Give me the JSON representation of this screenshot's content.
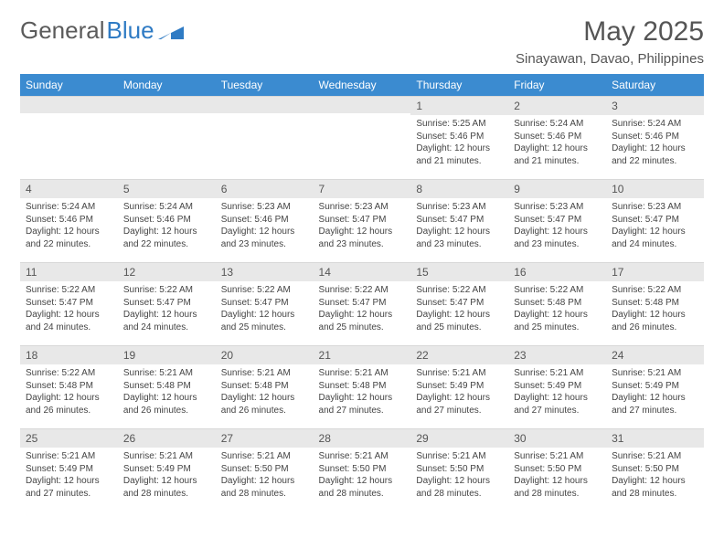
{
  "logo": {
    "text_a": "General",
    "text_b": "Blue",
    "triangle_color": "#2f7bc4"
  },
  "title": "May 2025",
  "subtitle": "Sinayawan, Davao, Philippines",
  "weekday_labels": [
    "Sunday",
    "Monday",
    "Tuesday",
    "Wednesday",
    "Thursday",
    "Friday",
    "Saturday"
  ],
  "colors": {
    "header_bg": "#3b8bd0",
    "header_text": "#ffffff",
    "daynum_bg": "#e8e8e8",
    "text": "#444444"
  },
  "weeks": [
    [
      {
        "n": "",
        "sr": "",
        "ss": "",
        "dl": ""
      },
      {
        "n": "",
        "sr": "",
        "ss": "",
        "dl": ""
      },
      {
        "n": "",
        "sr": "",
        "ss": "",
        "dl": ""
      },
      {
        "n": "",
        "sr": "",
        "ss": "",
        "dl": ""
      },
      {
        "n": "1",
        "sr": "Sunrise: 5:25 AM",
        "ss": "Sunset: 5:46 PM",
        "dl": "Daylight: 12 hours and 21 minutes."
      },
      {
        "n": "2",
        "sr": "Sunrise: 5:24 AM",
        "ss": "Sunset: 5:46 PM",
        "dl": "Daylight: 12 hours and 21 minutes."
      },
      {
        "n": "3",
        "sr": "Sunrise: 5:24 AM",
        "ss": "Sunset: 5:46 PM",
        "dl": "Daylight: 12 hours and 22 minutes."
      }
    ],
    [
      {
        "n": "4",
        "sr": "Sunrise: 5:24 AM",
        "ss": "Sunset: 5:46 PM",
        "dl": "Daylight: 12 hours and 22 minutes."
      },
      {
        "n": "5",
        "sr": "Sunrise: 5:24 AM",
        "ss": "Sunset: 5:46 PM",
        "dl": "Daylight: 12 hours and 22 minutes."
      },
      {
        "n": "6",
        "sr": "Sunrise: 5:23 AM",
        "ss": "Sunset: 5:46 PM",
        "dl": "Daylight: 12 hours and 23 minutes."
      },
      {
        "n": "7",
        "sr": "Sunrise: 5:23 AM",
        "ss": "Sunset: 5:47 PM",
        "dl": "Daylight: 12 hours and 23 minutes."
      },
      {
        "n": "8",
        "sr": "Sunrise: 5:23 AM",
        "ss": "Sunset: 5:47 PM",
        "dl": "Daylight: 12 hours and 23 minutes."
      },
      {
        "n": "9",
        "sr": "Sunrise: 5:23 AM",
        "ss": "Sunset: 5:47 PM",
        "dl": "Daylight: 12 hours and 23 minutes."
      },
      {
        "n": "10",
        "sr": "Sunrise: 5:23 AM",
        "ss": "Sunset: 5:47 PM",
        "dl": "Daylight: 12 hours and 24 minutes."
      }
    ],
    [
      {
        "n": "11",
        "sr": "Sunrise: 5:22 AM",
        "ss": "Sunset: 5:47 PM",
        "dl": "Daylight: 12 hours and 24 minutes."
      },
      {
        "n": "12",
        "sr": "Sunrise: 5:22 AM",
        "ss": "Sunset: 5:47 PM",
        "dl": "Daylight: 12 hours and 24 minutes."
      },
      {
        "n": "13",
        "sr": "Sunrise: 5:22 AM",
        "ss": "Sunset: 5:47 PM",
        "dl": "Daylight: 12 hours and 25 minutes."
      },
      {
        "n": "14",
        "sr": "Sunrise: 5:22 AM",
        "ss": "Sunset: 5:47 PM",
        "dl": "Daylight: 12 hours and 25 minutes."
      },
      {
        "n": "15",
        "sr": "Sunrise: 5:22 AM",
        "ss": "Sunset: 5:47 PM",
        "dl": "Daylight: 12 hours and 25 minutes."
      },
      {
        "n": "16",
        "sr": "Sunrise: 5:22 AM",
        "ss": "Sunset: 5:48 PM",
        "dl": "Daylight: 12 hours and 25 minutes."
      },
      {
        "n": "17",
        "sr": "Sunrise: 5:22 AM",
        "ss": "Sunset: 5:48 PM",
        "dl": "Daylight: 12 hours and 26 minutes."
      }
    ],
    [
      {
        "n": "18",
        "sr": "Sunrise: 5:22 AM",
        "ss": "Sunset: 5:48 PM",
        "dl": "Daylight: 12 hours and 26 minutes."
      },
      {
        "n": "19",
        "sr": "Sunrise: 5:21 AM",
        "ss": "Sunset: 5:48 PM",
        "dl": "Daylight: 12 hours and 26 minutes."
      },
      {
        "n": "20",
        "sr": "Sunrise: 5:21 AM",
        "ss": "Sunset: 5:48 PM",
        "dl": "Daylight: 12 hours and 26 minutes."
      },
      {
        "n": "21",
        "sr": "Sunrise: 5:21 AM",
        "ss": "Sunset: 5:48 PM",
        "dl": "Daylight: 12 hours and 27 minutes."
      },
      {
        "n": "22",
        "sr": "Sunrise: 5:21 AM",
        "ss": "Sunset: 5:49 PM",
        "dl": "Daylight: 12 hours and 27 minutes."
      },
      {
        "n": "23",
        "sr": "Sunrise: 5:21 AM",
        "ss": "Sunset: 5:49 PM",
        "dl": "Daylight: 12 hours and 27 minutes."
      },
      {
        "n": "24",
        "sr": "Sunrise: 5:21 AM",
        "ss": "Sunset: 5:49 PM",
        "dl": "Daylight: 12 hours and 27 minutes."
      }
    ],
    [
      {
        "n": "25",
        "sr": "Sunrise: 5:21 AM",
        "ss": "Sunset: 5:49 PM",
        "dl": "Daylight: 12 hours and 27 minutes."
      },
      {
        "n": "26",
        "sr": "Sunrise: 5:21 AM",
        "ss": "Sunset: 5:49 PM",
        "dl": "Daylight: 12 hours and 28 minutes."
      },
      {
        "n": "27",
        "sr": "Sunrise: 5:21 AM",
        "ss": "Sunset: 5:50 PM",
        "dl": "Daylight: 12 hours and 28 minutes."
      },
      {
        "n": "28",
        "sr": "Sunrise: 5:21 AM",
        "ss": "Sunset: 5:50 PM",
        "dl": "Daylight: 12 hours and 28 minutes."
      },
      {
        "n": "29",
        "sr": "Sunrise: 5:21 AM",
        "ss": "Sunset: 5:50 PM",
        "dl": "Daylight: 12 hours and 28 minutes."
      },
      {
        "n": "30",
        "sr": "Sunrise: 5:21 AM",
        "ss": "Sunset: 5:50 PM",
        "dl": "Daylight: 12 hours and 28 minutes."
      },
      {
        "n": "31",
        "sr": "Sunrise: 5:21 AM",
        "ss": "Sunset: 5:50 PM",
        "dl": "Daylight: 12 hours and 28 minutes."
      }
    ]
  ]
}
